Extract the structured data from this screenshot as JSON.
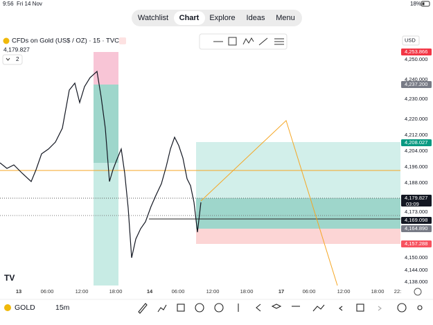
{
  "status_bar": {
    "time": "9:56",
    "date": "Fri 14 Nov",
    "battery": "18%"
  },
  "nav": [
    "Watchlist",
    "Chart",
    "Explore",
    "Ideas",
    "Menu"
  ],
  "symbol": {
    "title": "CFDs on Gold (US$ / OZ) · 15 · TVC",
    "price": "4,179.827",
    "layout_count": "2"
  },
  "currency": "USD",
  "price_axis": [
    "4,253.866",
    "4,250.000",
    "4,240.000",
    "4,237.200",
    "4,230.000",
    "4,220.000",
    "4,212.000",
    "4,208.027",
    "4,204.000",
    "4,196.000",
    "4,188.000",
    "4,179.827",
    "4,173.000",
    "4,169.098",
    "4,164.890",
    "4,157.288",
    "4,150.000",
    "4,144.000",
    "4,138.000"
  ],
  "countdown": "03:09",
  "time_axis": [
    "13",
    "06:00",
    "12:00",
    "18:00",
    "14",
    "06:00",
    "12:00",
    "18:00",
    "17",
    "06:00",
    "12:00",
    "18:00",
    "22:"
  ],
  "bottom": {
    "symbol": "GOLD",
    "interval": "15m"
  }
}
